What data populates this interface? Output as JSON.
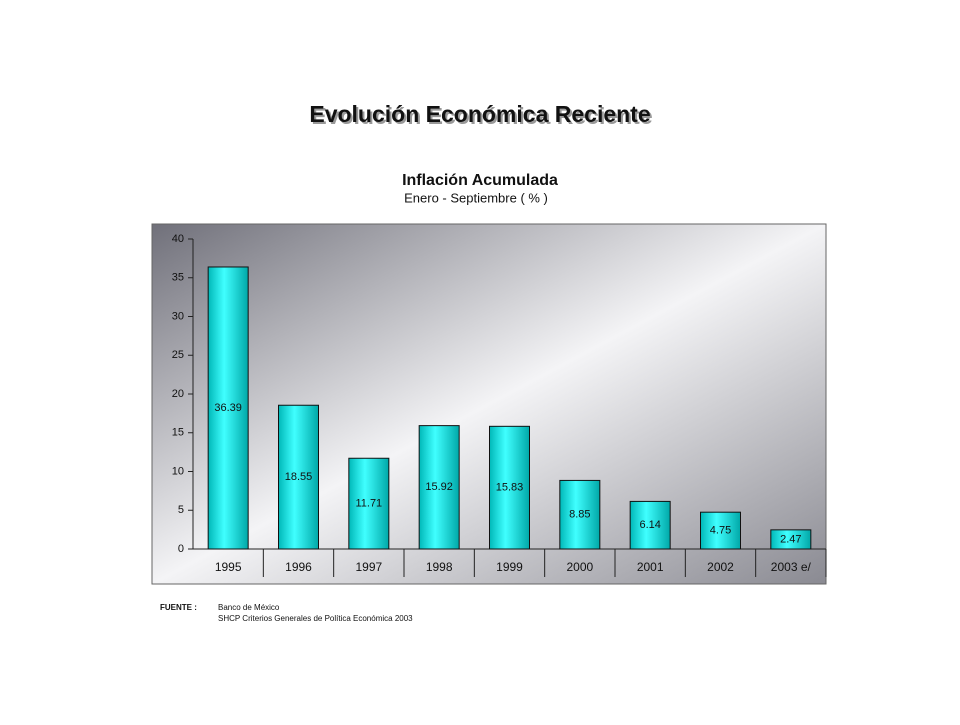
{
  "header": {
    "title": "Evolución Económica Reciente"
  },
  "chart_data": {
    "type": "bar",
    "title": "Inflación Acumulada",
    "subtitle": "Enero - Septiembre ( % )",
    "categories": [
      "1995",
      "1996",
      "1997",
      "1998",
      "1999",
      "2000",
      "2001",
      "2002",
      "2003 e/"
    ],
    "values": [
      36.39,
      18.55,
      11.71,
      15.92,
      15.83,
      8.85,
      6.14,
      4.75,
      2.47
    ],
    "color": "#00e0e0",
    "ylim": [
      0,
      40
    ],
    "yticks": [
      0,
      5,
      10,
      15,
      20,
      25,
      30,
      35,
      40
    ]
  },
  "source": {
    "label": "FUENTE :",
    "lines": [
      "Banco de México",
      "SHCP Criterios Generales de Política Económica 2003"
    ]
  }
}
